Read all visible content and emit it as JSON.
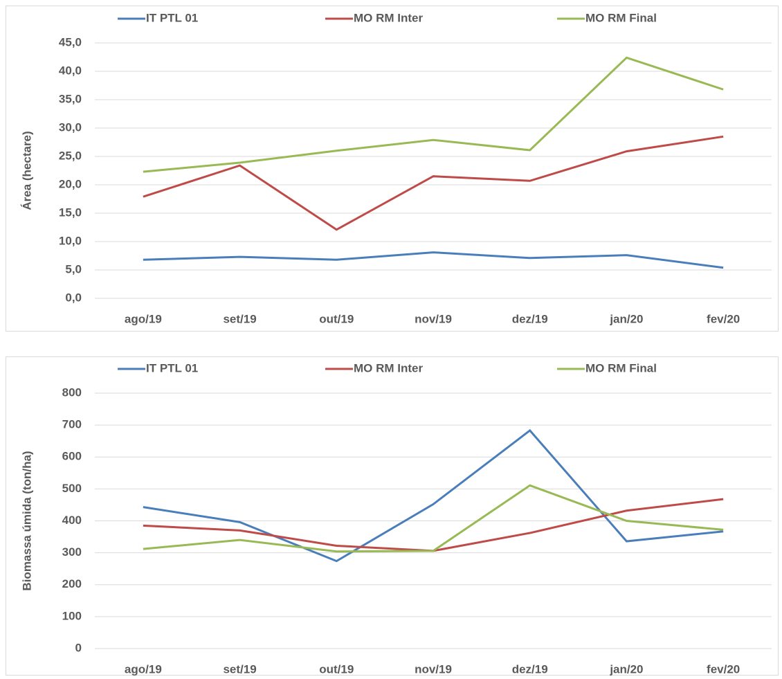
{
  "chart_data": [
    {
      "type": "line",
      "y_label": "Área (hectare)",
      "categories": [
        "ago/19",
        "set/19",
        "out/19",
        "nov/19",
        "dez/19",
        "jan/20",
        "fev/20"
      ],
      "series": [
        {
          "name": "IT PTL 01",
          "color": "#4a7ebb",
          "values": [
            6.8,
            7.3,
            6.8,
            8.1,
            7.1,
            7.6,
            5.4
          ]
        },
        {
          "name": "MO RM Inter",
          "color": "#be4b48",
          "values": [
            17.9,
            23.4,
            12.1,
            21.5,
            20.7,
            25.9,
            28.5
          ]
        },
        {
          "name": "MO RM Final",
          "color": "#98b954",
          "values": [
            22.3,
            23.9,
            26.0,
            27.9,
            26.1,
            42.4,
            36.8
          ]
        }
      ],
      "ylim": [
        0,
        45
      ],
      "yticks": [
        {
          "value": 0,
          "label": "0,0"
        },
        {
          "value": 5,
          "label": "5,0"
        },
        {
          "value": 10,
          "label": "10,0"
        },
        {
          "value": 15,
          "label": "15,0"
        },
        {
          "value": 20,
          "label": "20,0"
        },
        {
          "value": 25,
          "label": "25,0"
        },
        {
          "value": 30,
          "label": "30,0"
        },
        {
          "value": 35,
          "label": "35,0"
        },
        {
          "value": 40,
          "label": "40,0"
        },
        {
          "value": 45,
          "label": "45,0"
        }
      ],
      "grid": true
    },
    {
      "type": "line",
      "y_label": "Biomassa úmida (ton/ha)",
      "categories": [
        "ago/19",
        "set/19",
        "out/19",
        "nov/19",
        "dez/19",
        "jan/20",
        "fev/20"
      ],
      "series": [
        {
          "name": "IT PTL 01",
          "color": "#4a7ebb",
          "values": [
            443,
            396,
            274,
            452,
            683,
            336,
            367
          ]
        },
        {
          "name": "MO RM Inter",
          "color": "#be4b48",
          "values": [
            385,
            370,
            322,
            306,
            362,
            432,
            468
          ]
        },
        {
          "name": "MO RM Final",
          "color": "#98b954",
          "values": [
            312,
            340,
            304,
            306,
            511,
            400,
            372
          ]
        }
      ],
      "ylim": [
        0,
        800
      ],
      "yticks": [
        0,
        100,
        200,
        300,
        400,
        500,
        600,
        700,
        800
      ],
      "grid": true
    }
  ]
}
